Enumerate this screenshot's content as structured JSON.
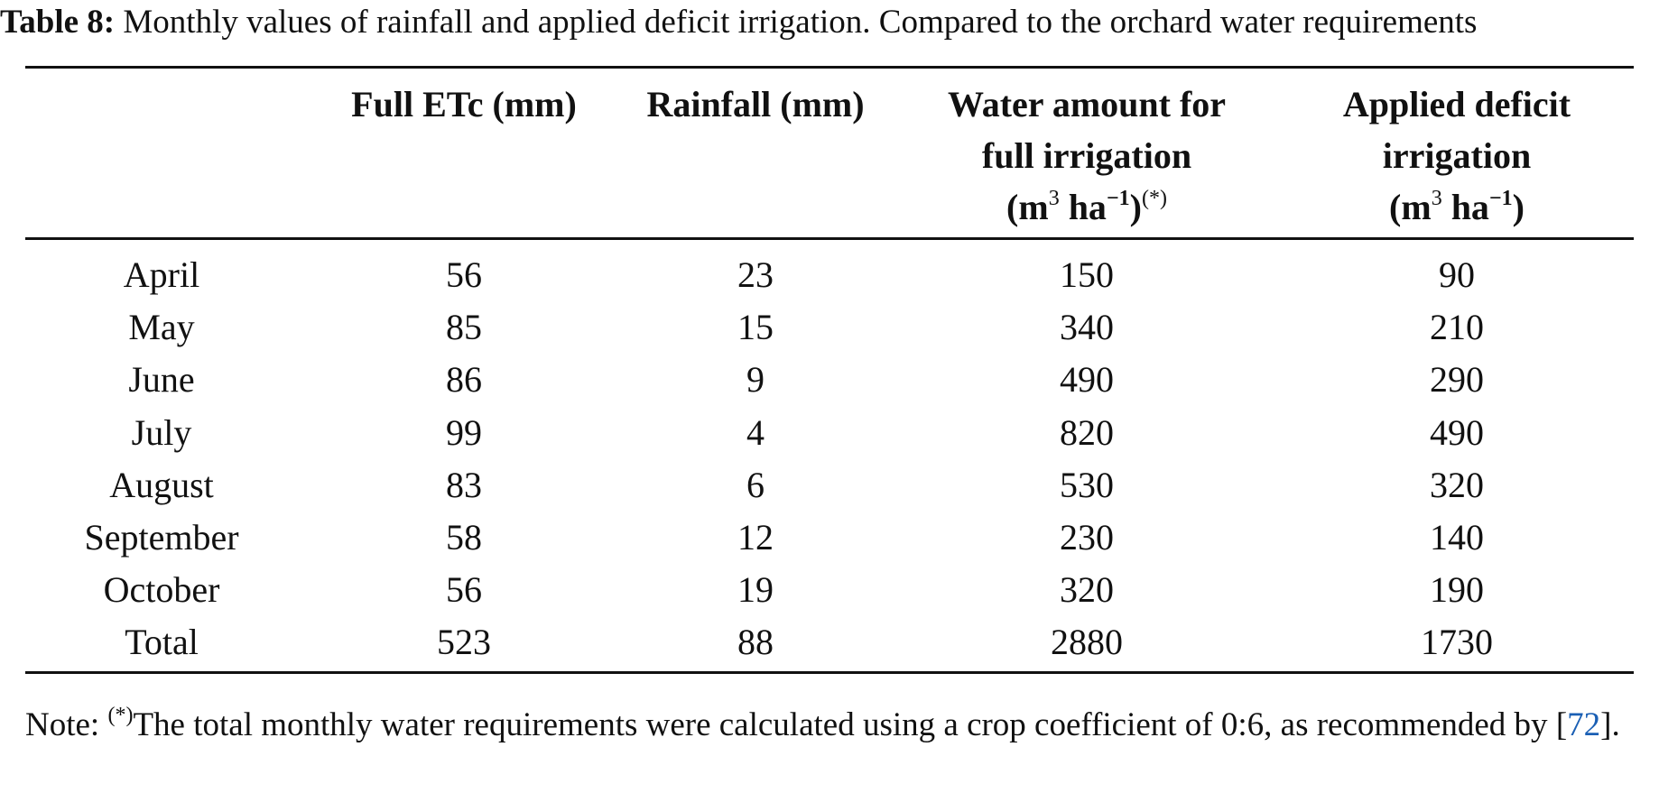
{
  "caption": {
    "label": "Table 8:",
    "text": "Monthly values of rainfall and applied deficit irrigation. Compared to the orchard water requirements"
  },
  "headers": {
    "month": "",
    "full_etc": "Full ETc (mm)",
    "rainfall": "Rainfall (mm)",
    "water_full": {
      "line1": "Water amount for",
      "line2": "full irrigation",
      "unit_open": "(m",
      "unit_sup1": "3",
      "unit_mid": " ha",
      "unit_sup2": "−1",
      "unit_close": ")",
      "footnote": "(*)"
    },
    "applied": {
      "line1": "Applied deficit",
      "line2": "irrigation",
      "unit_open": "(m",
      "unit_sup1": "3",
      "unit_mid": " ha",
      "unit_sup2": "−1",
      "unit_close": ")"
    }
  },
  "rows": [
    {
      "month": "April",
      "etc": "56",
      "rain": "23",
      "full": "150",
      "deficit": "90"
    },
    {
      "month": "May",
      "etc": "85",
      "rain": "15",
      "full": "340",
      "deficit": "210"
    },
    {
      "month": "June",
      "etc": "86",
      "rain": "9",
      "full": "490",
      "deficit": "290"
    },
    {
      "month": "July",
      "etc": "99",
      "rain": "4",
      "full": "820",
      "deficit": "490"
    },
    {
      "month": "August",
      "etc": "83",
      "rain": "6",
      "full": "530",
      "deficit": "320"
    },
    {
      "month": "September",
      "etc": "58",
      "rain": "12",
      "full": "230",
      "deficit": "140"
    },
    {
      "month": "October",
      "etc": "56",
      "rain": "19",
      "full": "320",
      "deficit": "190"
    },
    {
      "month": "Total",
      "etc": "523",
      "rain": "88",
      "full": "2880",
      "deficit": "1730"
    }
  ],
  "note": {
    "prefix": "Note: ",
    "footnote": "(*)",
    "text": "The total monthly water requirements were calculated using a crop coefficient of 0:6, as recommended by ",
    "ref_open": "[",
    "ref": "72",
    "ref_close": "]."
  }
}
